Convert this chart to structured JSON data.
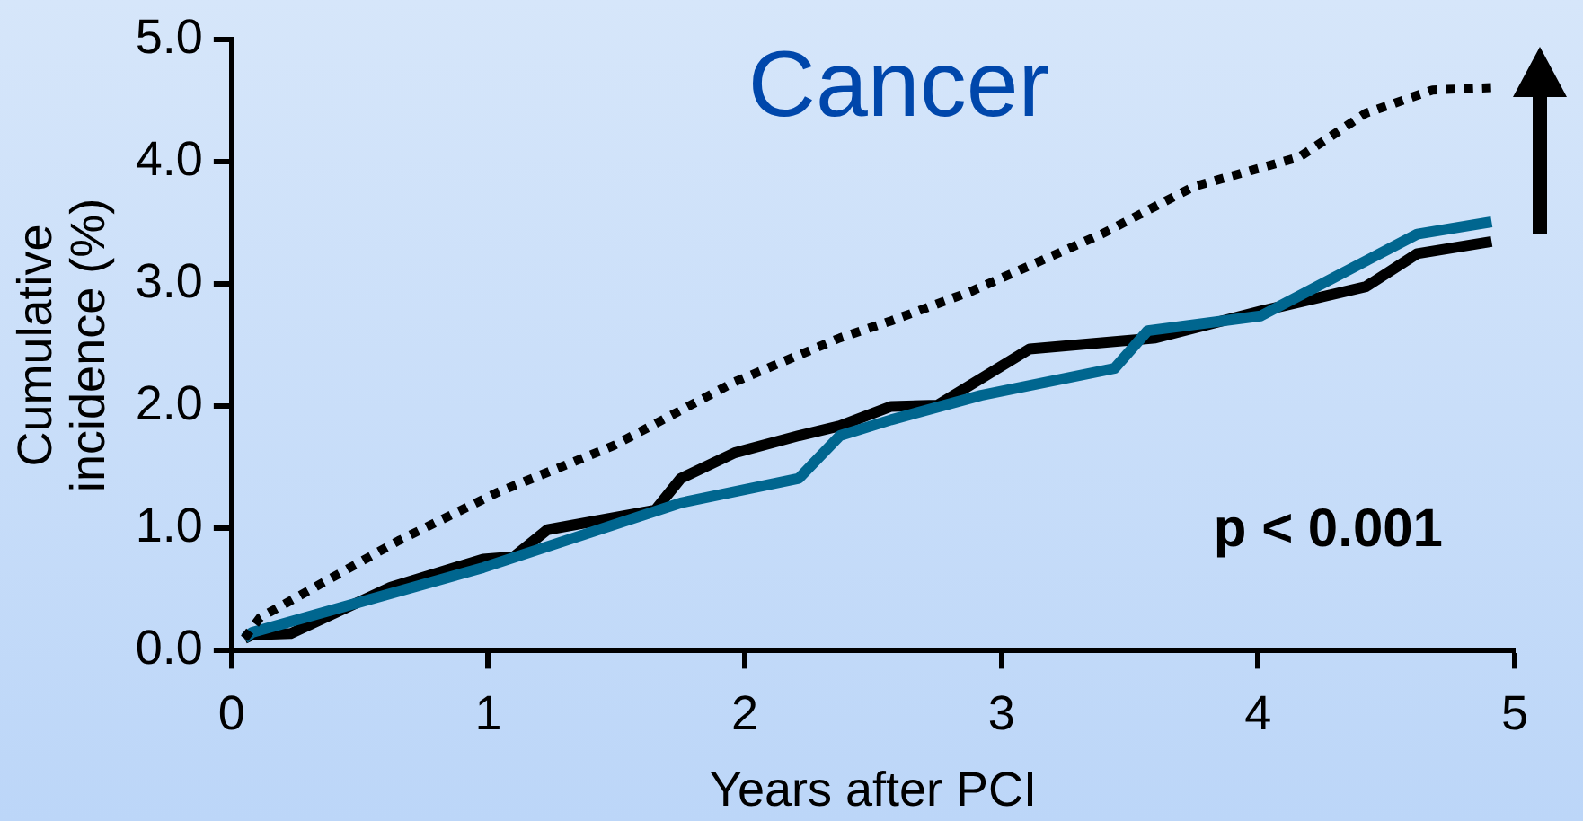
{
  "chart_data": {
    "type": "line",
    "title": "Cancer",
    "xlabel": "Years after PCI",
    "ylabel": "Cumulative incidence (%)",
    "xlim": [
      0,
      5
    ],
    "xticks": [
      0,
      1,
      2,
      3,
      4,
      5
    ],
    "ylim": [
      0,
      5
    ],
    "yticks": [
      {
        "value": 0,
        "label": "0.0"
      },
      {
        "value": 1,
        "label": "1.0"
      },
      {
        "value": 2,
        "label": "2.0"
      },
      {
        "value": 3,
        "label": "3.0"
      },
      {
        "value": 4,
        "label": "4.0"
      },
      {
        "value": 5,
        "label": "5.0"
      }
    ],
    "grid": false,
    "legend": false,
    "marker": "none",
    "annotations": [
      "p < 0.001"
    ],
    "series": [
      {
        "color": "#000000",
        "line_style": "dotted",
        "x": [
          0.05,
          0.11,
          0.65,
          1.03,
          1.49,
          1.96,
          2.37,
          2.57,
          2.88,
          3.39,
          3.75,
          4.16,
          4.42,
          4.68,
          4.91
        ],
        "values": [
          0.1,
          0.27,
          0.9,
          1.29,
          1.68,
          2.2,
          2.56,
          2.7,
          2.94,
          3.41,
          3.8,
          4.04,
          4.4,
          4.59,
          4.61
        ]
      },
      {
        "color": "#00668f",
        "line_style": "solid",
        "x": [
          0.05,
          0.08,
          0.98,
          1.75,
          2.21,
          2.37,
          2.57,
          2.92,
          3.44,
          3.57,
          4.01,
          4.31,
          4.62,
          4.91
        ],
        "values": [
          0.1,
          0.15,
          0.68,
          1.21,
          1.41,
          1.76,
          1.89,
          2.09,
          2.31,
          2.62,
          2.74,
          3.07,
          3.41,
          3.51
        ]
      },
      {
        "color": "#000000",
        "line_style": "solid",
        "x": [
          0.05,
          0.08,
          0.23,
          0.62,
          0.98,
          1.1,
          1.23,
          1.65,
          1.75,
          1.96,
          2.21,
          2.37,
          2.57,
          2.75,
          3.11,
          3.6,
          4.01,
          4.42,
          4.62,
          4.91
        ],
        "values": [
          0.1,
          0.13,
          0.14,
          0.52,
          0.75,
          0.77,
          0.99,
          1.15,
          1.41,
          1.62,
          1.76,
          1.84,
          2.0,
          2.01,
          2.47,
          2.56,
          2.78,
          2.98,
          3.25,
          3.35
        ]
      }
    ]
  }
}
